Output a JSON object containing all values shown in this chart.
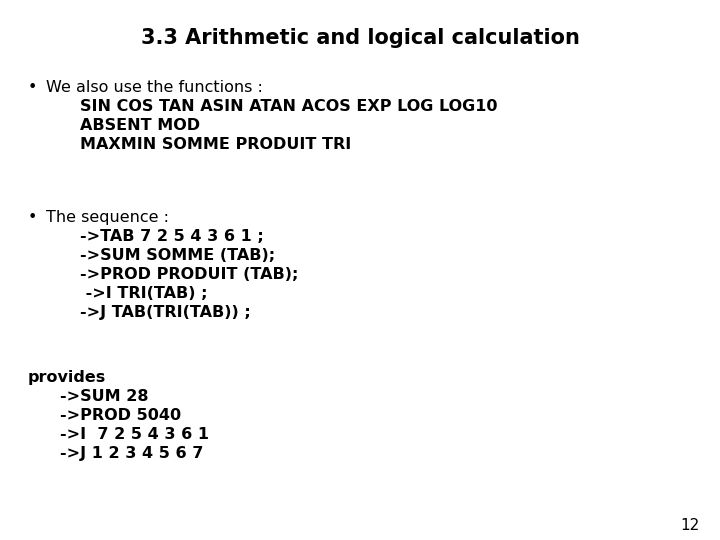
{
  "title": "3.3 Arithmetic and logical calculation",
  "title_fontsize": 15,
  "background_color": "#ffffff",
  "text_color": "#000000",
  "page_number": "12",
  "body_fontsize": 11.5,
  "bullet1_intro": "We also use the functions :",
  "bullet1_line1": "SIN COS TAN ASIN ATAN ACOS EXP LOG LOG10",
  "bullet1_line2": "ABSENT MOD",
  "bullet1_line3": "MAXMIN SOMME PRODUIT TRI",
  "bullet2_intro": "The sequence :",
  "bullet2_line1": "->TAB 7 2 5 4 3 6 1 ;",
  "bullet2_line2": "->SUM SOMME (TAB);",
  "bullet2_line3": "->PROD PRODUIT (TAB);",
  "bullet2_line4": " ->I TRI(TAB) ;",
  "bullet2_line5": "->J TAB(TRI(TAB)) ;",
  "section3_line0": "provides",
  "section3_line1": "->SUM 28",
  "section3_line2": "->PROD 5040",
  "section3_line3": "->I  7 2 5 4 3 6 1",
  "section3_line4": "->J 1 2 3 4 5 6 7"
}
